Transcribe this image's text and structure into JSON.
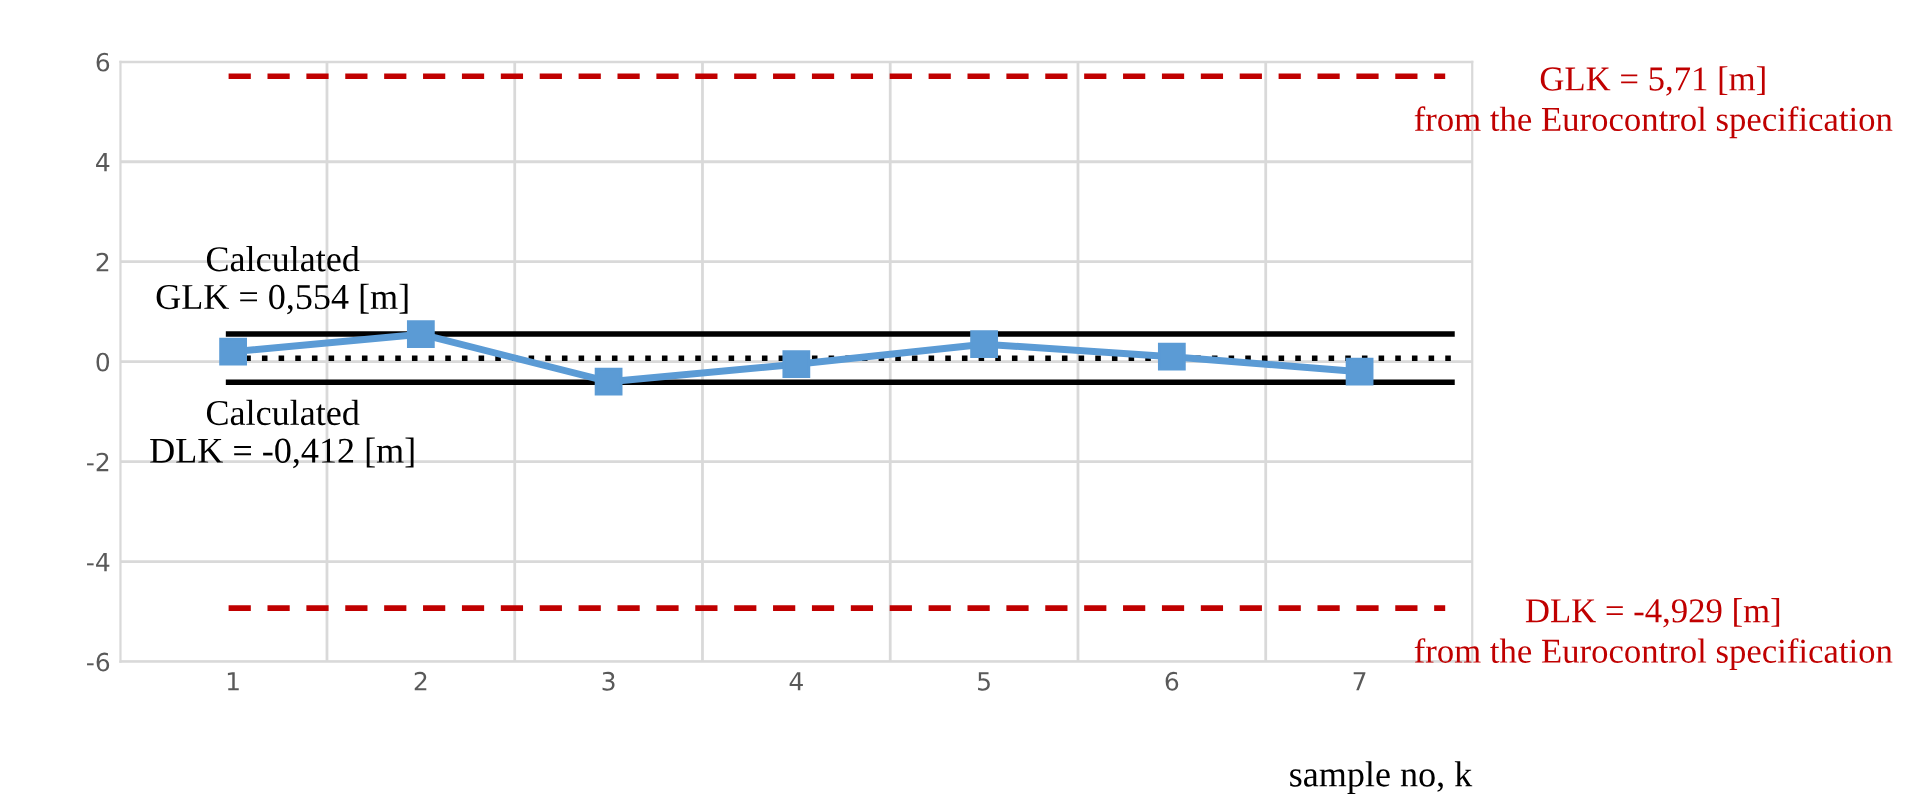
{
  "chart_data": {
    "type": "line",
    "xlabel": "sample no, k",
    "categories": [
      "1",
      "2",
      "3",
      "4",
      "5",
      "6",
      "7"
    ],
    "series": [
      {
        "color": "#5b9bd5",
        "values": [
          0.2,
          0.55,
          -0.4,
          -0.05,
          0.35,
          0.1,
          -0.2
        ]
      }
    ],
    "marker": "square",
    "line_style": "solid",
    "ylim": [
      -6,
      6
    ],
    "yticks": [
      -6,
      -4,
      -2,
      0,
      2,
      4,
      6
    ],
    "grid": true,
    "legend": false,
    "ref_lines": [
      {
        "axis": "y",
        "value": 5.71,
        "label": "GLK = 5,71 [m]\nfrom the Eurocontrol specification",
        "color": "#c00000",
        "line_style": "dashed"
      },
      {
        "axis": "y",
        "value": -4.929,
        "label": "DLK = -4,929 [m]\nfrom the Eurocontrol specification",
        "color": "#c00000",
        "line_style": "dashed"
      },
      {
        "axis": "y",
        "value": 0.554,
        "label": "Calculated\nGLK = 0,554 [m]",
        "color": "#000000",
        "line_style": "solid"
      },
      {
        "axis": "y",
        "value": -0.412,
        "label": "Calculated\nDLK = -0,412 [m]",
        "color": "#000000",
        "line_style": "solid"
      },
      {
        "axis": "y",
        "value": 0.07,
        "color": "#000000",
        "line_style": "dotted"
      }
    ]
  }
}
